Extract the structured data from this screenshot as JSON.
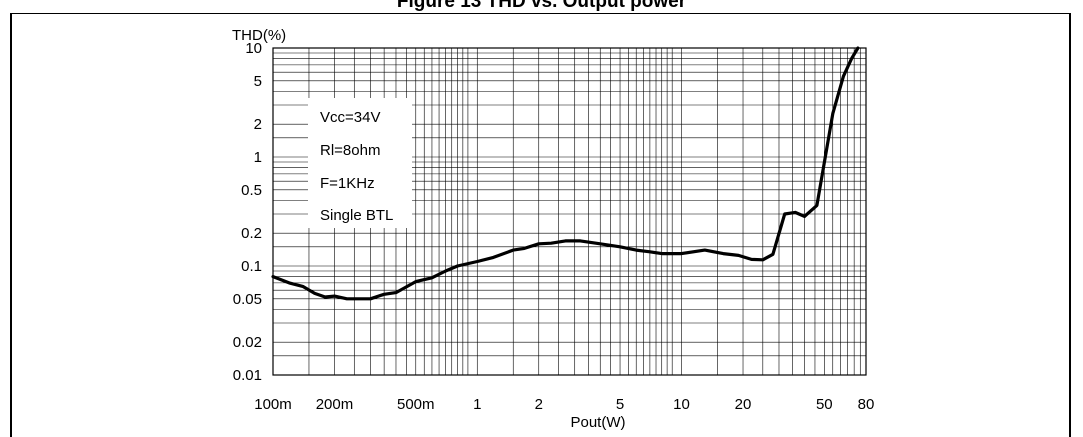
{
  "chart_data": {
    "type": "line",
    "title": "Figure 13 THD vs. Output power",
    "xlabel": "Pout(W)",
    "ylabel": "THD(%)",
    "x_scale": "log",
    "y_scale": "log",
    "xlim": [
      0.1,
      80
    ],
    "ylim": [
      0.01,
      10
    ],
    "grid": true,
    "x_ticks": [
      {
        "value": 0.1,
        "label": "100m"
      },
      {
        "value": 0.2,
        "label": "200m"
      },
      {
        "value": 0.5,
        "label": "500m"
      },
      {
        "value": 1,
        "label": "1"
      },
      {
        "value": 2,
        "label": "2"
      },
      {
        "value": 5,
        "label": "5"
      },
      {
        "value": 10,
        "label": "10"
      },
      {
        "value": 20,
        "label": "20"
      },
      {
        "value": 50,
        "label": "50"
      },
      {
        "value": 80,
        "label": "80"
      }
    ],
    "y_ticks": [
      {
        "value": 0.01,
        "label": "0.01"
      },
      {
        "value": 0.02,
        "label": "0.02"
      },
      {
        "value": 0.05,
        "label": "0.05"
      },
      {
        "value": 0.1,
        "label": "0.1"
      },
      {
        "value": 0.2,
        "label": "0.2"
      },
      {
        "value": 0.5,
        "label": "0.5"
      },
      {
        "value": 1,
        "label": "1"
      },
      {
        "value": 2,
        "label": "2"
      },
      {
        "value": 5,
        "label": "5"
      },
      {
        "value": 10,
        "label": "10"
      }
    ],
    "annotations": [
      "Vcc=34V",
      "Rl=8ohm",
      "F=1KHz",
      "Single BTL"
    ],
    "annotation_placement": "top-left",
    "series": [
      {
        "color": "#000000",
        "x": [
          0.1,
          0.12,
          0.14,
          0.16,
          0.18,
          0.2,
          0.23,
          0.26,
          0.3,
          0.35,
          0.4,
          0.5,
          0.6,
          0.7,
          0.8,
          1.0,
          1.2,
          1.5,
          1.7,
          2.0,
          2.3,
          2.7,
          3.2,
          4.0,
          5.0,
          6.0,
          7.0,
          8.0,
          10,
          13,
          16,
          19,
          22,
          25,
          28,
          32,
          36,
          40,
          46,
          55,
          62,
          68,
          73
        ],
        "y": [
          0.08,
          0.07,
          0.065,
          0.056,
          0.052,
          0.053,
          0.05,
          0.05,
          0.05,
          0.055,
          0.057,
          0.072,
          0.078,
          0.09,
          0.1,
          0.11,
          0.12,
          0.14,
          0.145,
          0.16,
          0.162,
          0.17,
          0.17,
          0.16,
          0.15,
          0.14,
          0.135,
          0.13,
          0.13,
          0.14,
          0.13,
          0.125,
          0.115,
          0.114,
          0.128,
          0.3,
          0.31,
          0.285,
          0.36,
          2.5,
          5.5,
          8,
          10
        ]
      }
    ]
  }
}
